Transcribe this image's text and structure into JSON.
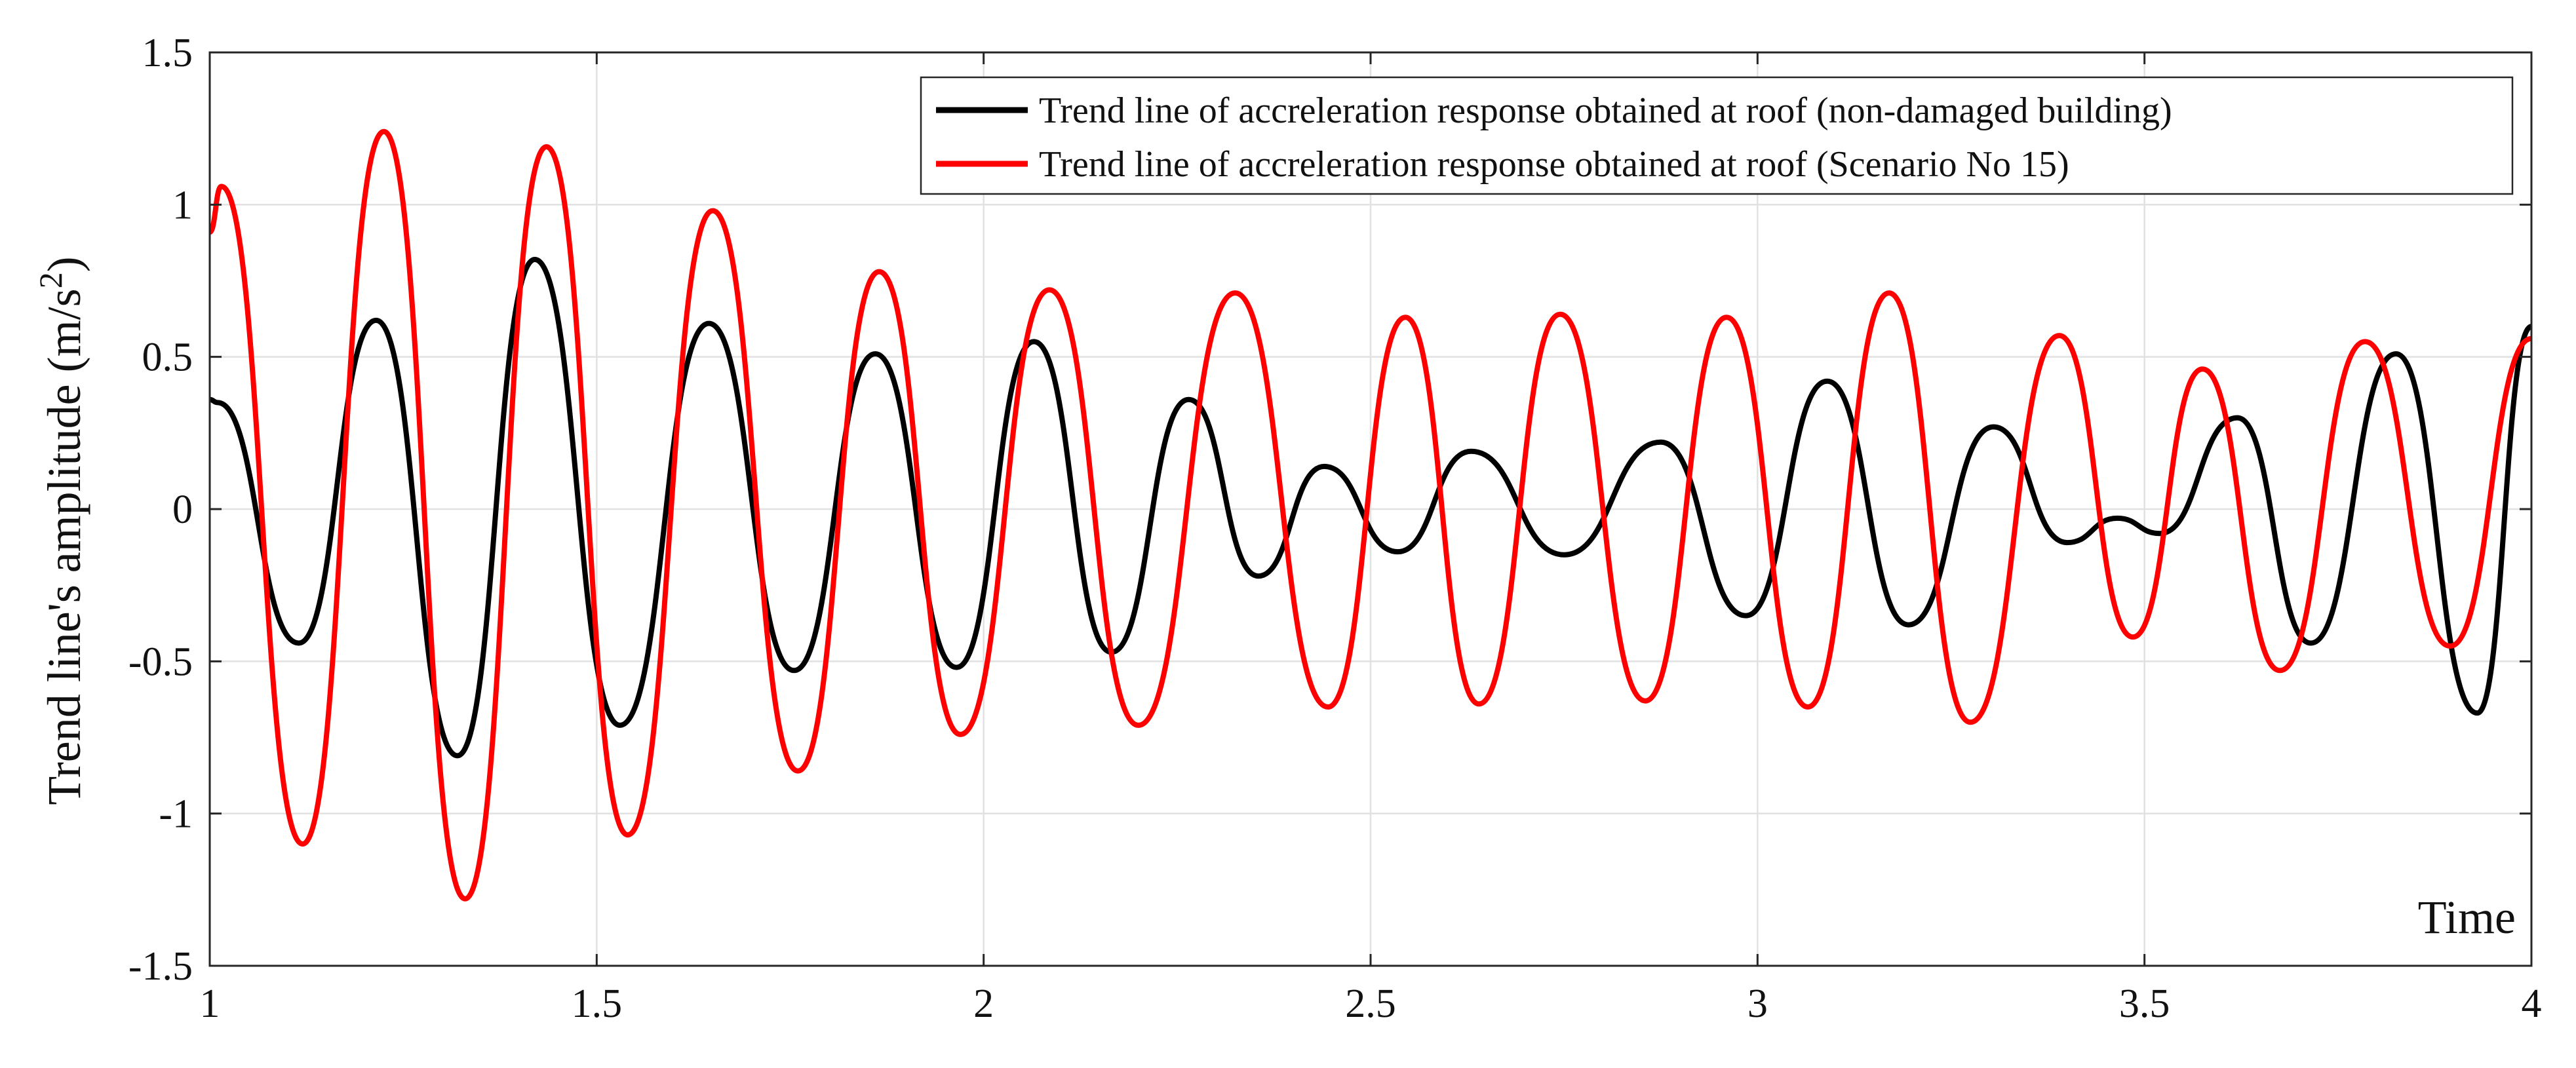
{
  "chart_data": {
    "type": "line",
    "title": "",
    "xlabel": "Time",
    "ylabel_main": "Trend line's amplitude (m/s",
    "ylabel_sup": "2",
    "ylabel_close": ")",
    "xlim": [
      1,
      4
    ],
    "ylim": [
      -1.5,
      1.5
    ],
    "grid": true,
    "legend_position": "top-right",
    "x_ticks": [
      1,
      1.5,
      2,
      2.5,
      3,
      3.5,
      4
    ],
    "x_tick_labels": [
      "1",
      "1.5",
      "2",
      "2.5",
      "3",
      "3.5",
      "4"
    ],
    "y_ticks": [
      -1.5,
      -1,
      -0.5,
      0,
      0.5,
      1,
      1.5
    ],
    "y_tick_labels": [
      "-1.5",
      "-1",
      "-0.5",
      "0",
      "0.5",
      "1",
      "1.5"
    ],
    "series": [
      {
        "name": "Trend line of accreleration response obtained at roof (non-damaged building)",
        "color": "#000000",
        "points": [
          [
            1.0,
            0.36
          ],
          [
            1.01,
            0.35
          ],
          [
            1.115,
            -0.44
          ],
          [
            1.215,
            0.62
          ],
          [
            1.32,
            -0.81
          ],
          [
            1.42,
            0.82
          ],
          [
            1.53,
            -0.71
          ],
          [
            1.645,
            0.61
          ],
          [
            1.755,
            -0.53
          ],
          [
            1.86,
            0.51
          ],
          [
            1.965,
            -0.52
          ],
          [
            2.065,
            0.55
          ],
          [
            2.165,
            -0.47
          ],
          [
            2.265,
            0.36
          ],
          [
            2.355,
            -0.22
          ],
          [
            2.44,
            0.14
          ],
          [
            2.535,
            -0.14
          ],
          [
            2.63,
            0.19
          ],
          [
            2.75,
            -0.15
          ],
          [
            2.875,
            0.22
          ],
          [
            2.985,
            -0.35
          ],
          [
            3.09,
            0.42
          ],
          [
            3.195,
            -0.38
          ],
          [
            3.305,
            0.27
          ],
          [
            3.4,
            -0.11
          ],
          [
            3.465,
            -0.03
          ],
          [
            3.52,
            -0.08
          ],
          [
            3.62,
            0.3
          ],
          [
            3.715,
            -0.44
          ],
          [
            3.825,
            0.51
          ],
          [
            3.93,
            -0.67
          ],
          [
            4.0,
            0.6
          ]
        ]
      },
      {
        "name": "Trend line of accreleration response obtained at roof (Scenario No 15)",
        "color": "#ff0000",
        "points": [
          [
            1.0,
            0.91
          ],
          [
            1.015,
            1.06
          ],
          [
            1.12,
            -1.1
          ],
          [
            1.225,
            1.24
          ],
          [
            1.33,
            -1.28
          ],
          [
            1.435,
            1.19
          ],
          [
            1.54,
            -1.07
          ],
          [
            1.65,
            0.98
          ],
          [
            1.76,
            -0.86
          ],
          [
            1.865,
            0.78
          ],
          [
            1.97,
            -0.74
          ],
          [
            2.085,
            0.72
          ],
          [
            2.2,
            -0.71
          ],
          [
            2.325,
            0.71
          ],
          [
            2.445,
            -0.65
          ],
          [
            2.545,
            0.63
          ],
          [
            2.64,
            -0.64
          ],
          [
            2.745,
            0.64
          ],
          [
            2.855,
            -0.63
          ],
          [
            2.96,
            0.63
          ],
          [
            3.065,
            -0.65
          ],
          [
            3.17,
            0.71
          ],
          [
            3.275,
            -0.7
          ],
          [
            3.39,
            0.57
          ],
          [
            3.485,
            -0.42
          ],
          [
            3.575,
            0.46
          ],
          [
            3.675,
            -0.53
          ],
          [
            3.785,
            0.55
          ],
          [
            3.895,
            -0.45
          ],
          [
            4.0,
            0.56
          ]
        ]
      }
    ]
  }
}
